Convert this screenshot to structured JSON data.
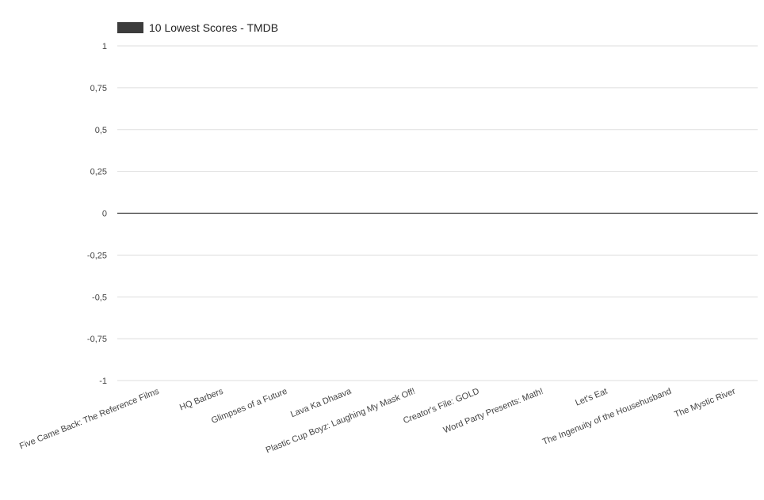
{
  "chart_data": {
    "type": "bar",
    "title": "",
    "xlabel": "",
    "ylabel": "",
    "legend": {
      "position": "top-left",
      "color": "#3c3c3c"
    },
    "grid": true,
    "ylim": [
      -1,
      1
    ],
    "y_ticks": [
      "1",
      "0,75",
      "0,5",
      "0,25",
      "0",
      "-0,25",
      "-0,5",
      "-0,75",
      "-1"
    ],
    "y_tick_values": [
      1,
      0.75,
      0.5,
      0.25,
      0,
      -0.25,
      -0.5,
      -0.75,
      -1
    ],
    "categories": [
      "Five Came Back: The Reference Films",
      "HQ Barbers",
      "Glimpses of a Future",
      "Lava Ka Dhaava",
      "Plastic Cup Boyz: Laughing My Mask Off!",
      "Creator's File: GOLD",
      "Word Party Presents: Math!",
      "Let's Eat",
      "The Ingenuity of the Househusband",
      "The Mystic River"
    ],
    "series": [
      {
        "name": "10 Lowest Scores - TMDB",
        "color": "#3c3c3c",
        "values": [
          0,
          0,
          0,
          0,
          0,
          0,
          0,
          0,
          0,
          0
        ]
      }
    ]
  }
}
